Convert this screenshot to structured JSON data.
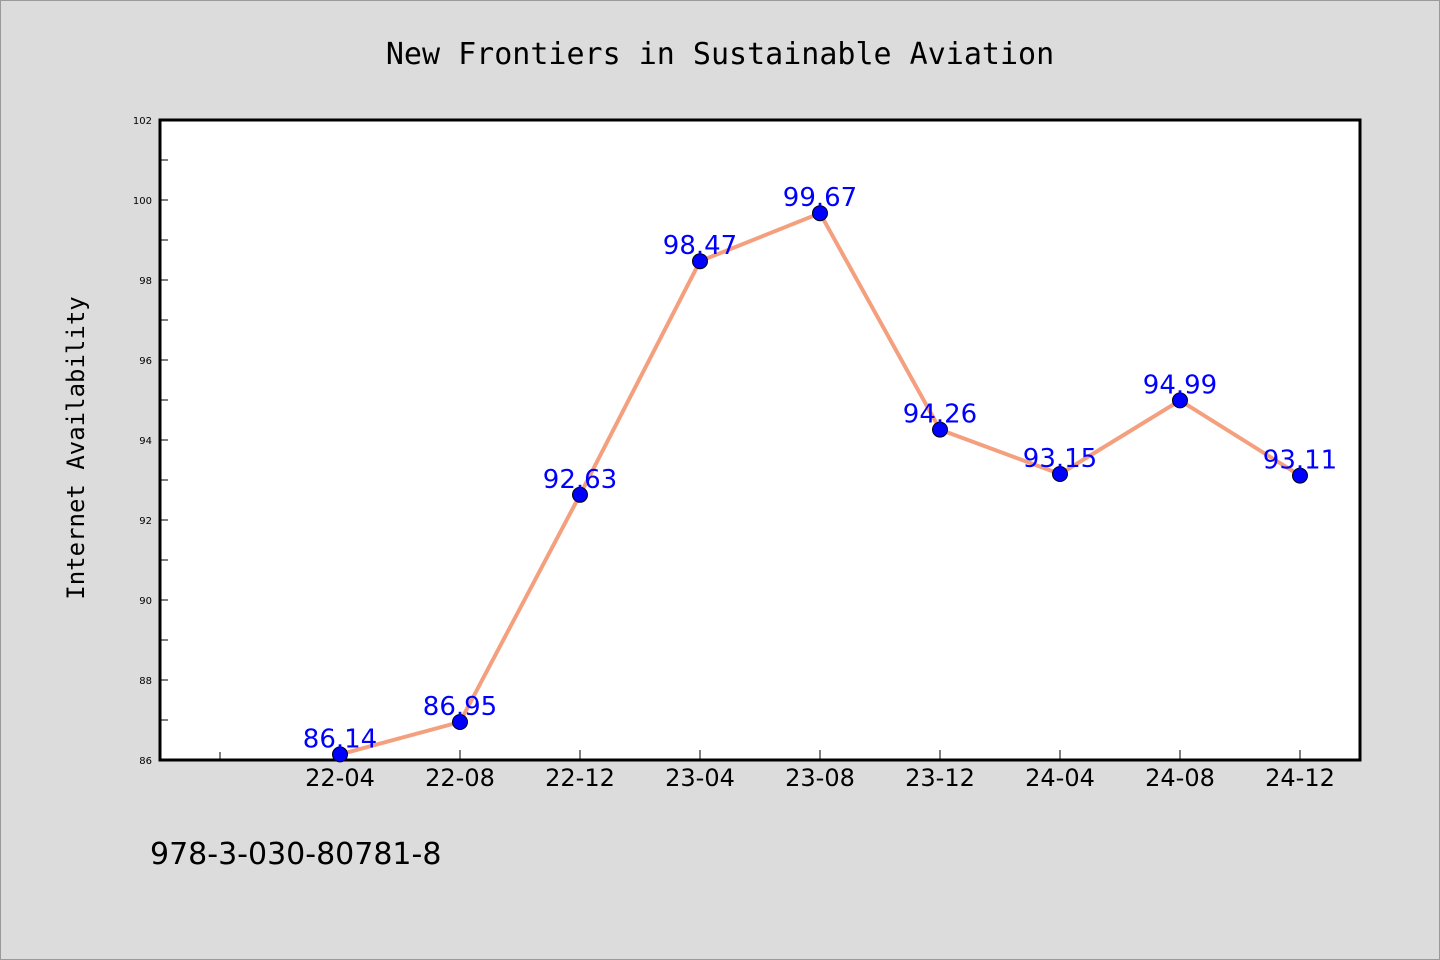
{
  "chart_data": {
    "type": "line",
    "title": "New Frontiers in Sustainable Aviation",
    "xlabel": "",
    "ylabel": "Internet Availability",
    "categories": [
      "22-04",
      "22-08",
      "22-12",
      "23-04",
      "23-08",
      "23-12",
      "24-04",
      "24-08",
      "24-12"
    ],
    "series": [
      {
        "values": [
          86.14,
          86.95,
          92.63,
          98.47,
          99.67,
          94.26,
          93.15,
          94.99,
          93.11
        ],
        "value_labels": [
          "86.14",
          "86.95",
          "92.63",
          "98.47",
          "99.67",
          "94.26",
          "93.15",
          "94.99",
          "93.11"
        ],
        "line_color": "#f4a07f",
        "marker_color": "#0000ff"
      }
    ],
    "ylim": [
      86,
      102
    ],
    "yticks": [
      86,
      88,
      90,
      92,
      94,
      96,
      98,
      100,
      102
    ],
    "grid": false,
    "legend": "none"
  },
  "footer": {
    "isbn": "978-3-030-80781-8"
  },
  "colors": {
    "background": "#dcdcdc",
    "plot_background": "#ffffff",
    "label_color": "#0000ff"
  }
}
